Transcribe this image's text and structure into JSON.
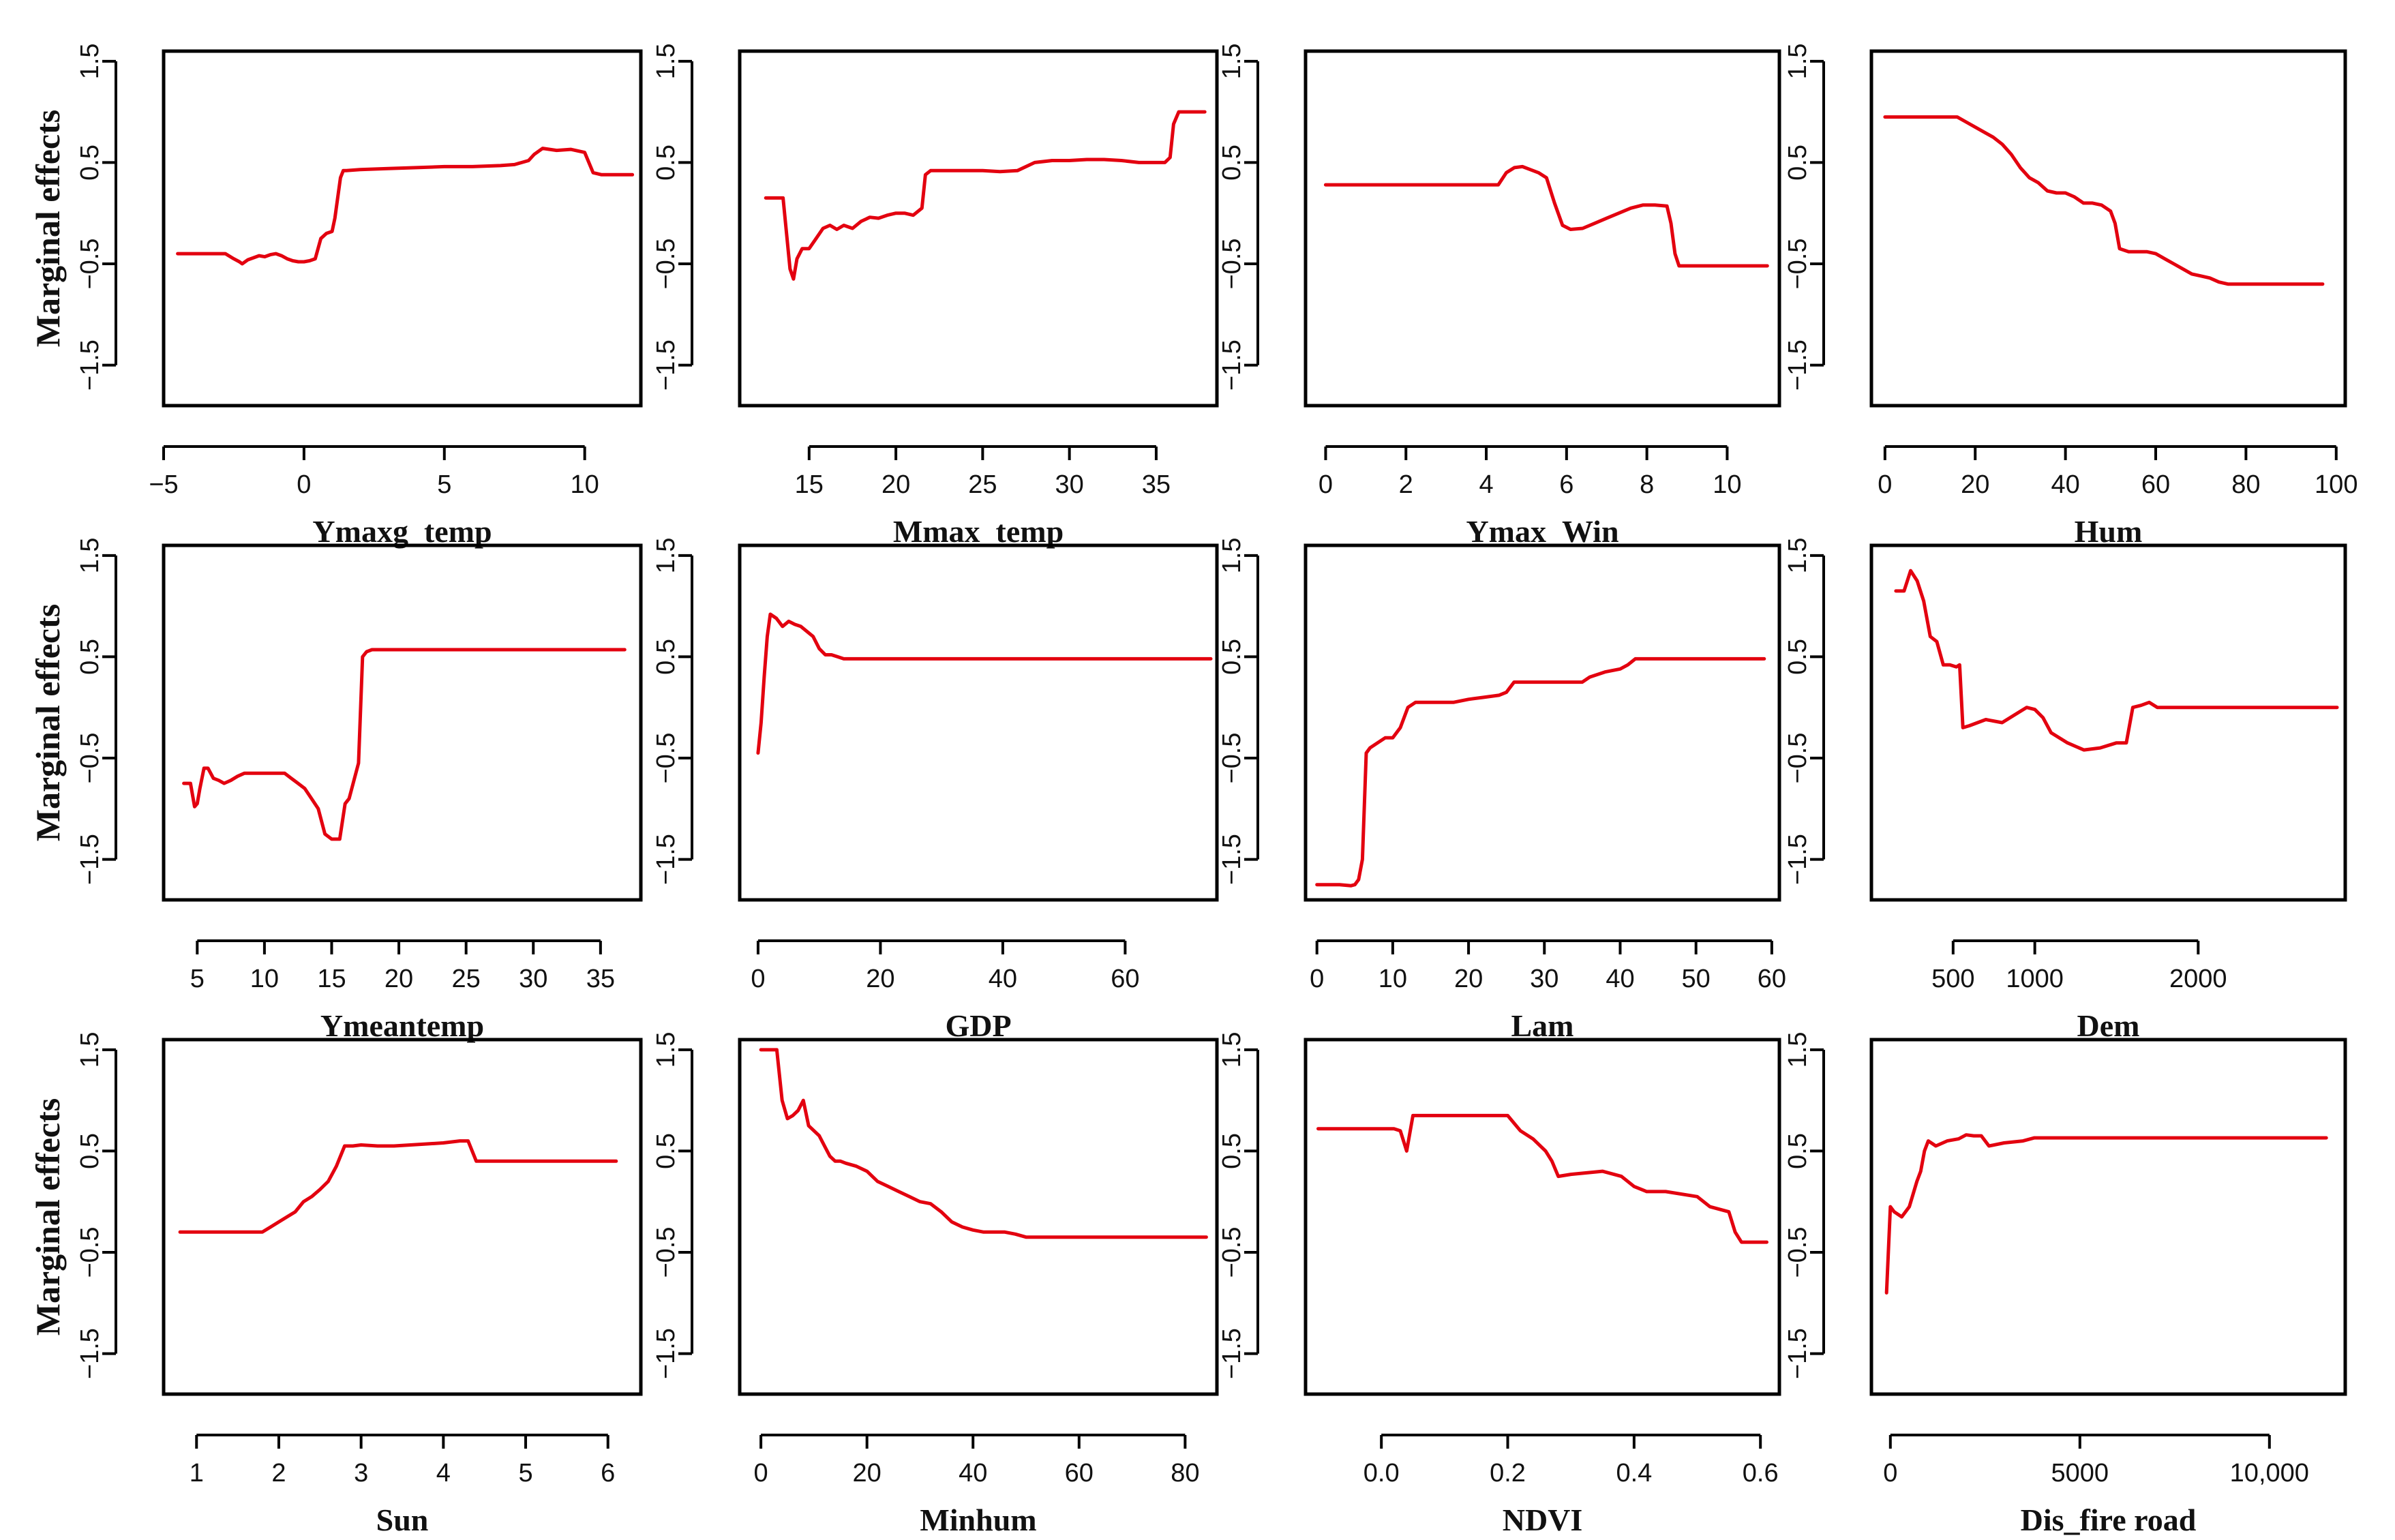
{
  "figure_ylabel": "Marginal effects",
  "colors": {
    "line": "#e3000f",
    "axis": "#000000",
    "background": "#ffffff"
  },
  "chart_data": [
    {
      "type": "line",
      "xlabel": "Ymaxg_temp",
      "ylabel": "Marginal effects",
      "xlim": [
        -5,
        12
      ],
      "ylim": [
        -1.9,
        1.6
      ],
      "xticks": [
        -5,
        0,
        5,
        10
      ],
      "xtick_labels": [
        "−5",
        "0",
        "5",
        "10"
      ],
      "yticks": [
        -1.5,
        -0.5,
        0.5,
        1.5
      ],
      "ytick_labels": [
        "−1.5",
        "−0.5",
        "0.5",
        "1.5"
      ],
      "x": [
        -4.5,
        -2.8,
        -2.5,
        -2.3,
        -2.2,
        -2.0,
        -1.8,
        -1.6,
        -1.4,
        -1.2,
        -1.0,
        -0.8,
        -0.6,
        -0.4,
        -0.2,
        0.0,
        0.2,
        0.4,
        0.6,
        0.8,
        1.0,
        1.1,
        1.2,
        1.3,
        1.4,
        1.5,
        2.0,
        3.0,
        4.0,
        5.0,
        6.0,
        7.0,
        7.5,
        8.0,
        8.2,
        8.5,
        9.0,
        9.5,
        10.0,
        10.3,
        10.6,
        11.7
      ],
      "y": [
        -0.4,
        -0.4,
        -0.45,
        -0.48,
        -0.5,
        -0.46,
        -0.44,
        -0.42,
        -0.43,
        -0.41,
        -0.4,
        -0.42,
        -0.45,
        -0.47,
        -0.48,
        -0.48,
        -0.47,
        -0.45,
        -0.25,
        -0.2,
        -0.18,
        -0.05,
        0.15,
        0.35,
        0.42,
        0.42,
        0.43,
        0.44,
        0.45,
        0.46,
        0.46,
        0.47,
        0.48,
        0.52,
        0.58,
        0.64,
        0.62,
        0.63,
        0.6,
        0.4,
        0.38,
        0.38
      ]
    },
    {
      "type": "line",
      "xlabel": "Mmax_temp",
      "ylabel": "Marginal effects",
      "xlim": [
        11,
        38.5
      ],
      "ylim": [
        -1.9,
        1.6
      ],
      "xticks": [
        15,
        20,
        25,
        30,
        35
      ],
      "xtick_labels": [
        "15",
        "20",
        "25",
        "30",
        "35"
      ],
      "yticks": [
        -1.5,
        -0.5,
        0.5,
        1.5
      ],
      "ytick_labels": [
        "−1.5",
        "−0.5",
        "0.5",
        "1.5"
      ],
      "x": [
        12.5,
        13.5,
        13.7,
        13.9,
        14.1,
        14.3,
        14.6,
        15.0,
        15.4,
        15.8,
        16.2,
        16.6,
        17.0,
        17.5,
        18.0,
        18.5,
        19.0,
        19.5,
        20.0,
        20.5,
        21.0,
        21.5,
        21.7,
        22.0,
        23.0,
        24.0,
        25.0,
        26.0,
        27.0,
        28.0,
        29.0,
        30.0,
        31.0,
        32.0,
        33.0,
        34.0,
        35.0,
        35.5,
        35.8,
        36.0,
        36.3,
        37.8
      ],
      "y": [
        0.15,
        0.15,
        -0.2,
        -0.55,
        -0.65,
        -0.45,
        -0.35,
        -0.35,
        -0.25,
        -0.15,
        -0.12,
        -0.16,
        -0.12,
        -0.15,
        -0.08,
        -0.04,
        -0.05,
        -0.02,
        0.0,
        0.0,
        -0.02,
        0.05,
        0.38,
        0.42,
        0.42,
        0.42,
        0.42,
        0.41,
        0.42,
        0.5,
        0.52,
        0.52,
        0.53,
        0.53,
        0.52,
        0.5,
        0.5,
        0.5,
        0.55,
        0.88,
        1.0,
        1.0
      ]
    },
    {
      "type": "line",
      "xlabel": "Ymax_Win",
      "ylabel": "Marginal effects",
      "xlim": [
        -0.5,
        11.3
      ],
      "ylim": [
        -1.9,
        1.6
      ],
      "xticks": [
        0,
        2,
        4,
        6,
        8,
        10
      ],
      "xtick_labels": [
        "0",
        "2",
        "4",
        "6",
        "8",
        "10"
      ],
      "yticks": [
        -1.5,
        -0.5,
        0.5,
        1.5
      ],
      "ytick_labels": [
        "−1.5",
        "−0.5",
        "0.5",
        "1.5"
      ],
      "x": [
        0.0,
        1.0,
        2.0,
        3.0,
        4.0,
        4.3,
        4.5,
        4.7,
        4.9,
        5.1,
        5.3,
        5.5,
        5.7,
        5.9,
        6.1,
        6.4,
        6.7,
        7.0,
        7.3,
        7.6,
        7.9,
        8.2,
        8.5,
        8.6,
        8.7,
        8.8,
        9.0,
        10.0,
        11.0
      ],
      "y": [
        0.28,
        0.28,
        0.28,
        0.28,
        0.28,
        0.28,
        0.4,
        0.45,
        0.46,
        0.43,
        0.4,
        0.35,
        0.1,
        -0.12,
        -0.16,
        -0.15,
        -0.1,
        -0.05,
        0.0,
        0.05,
        0.08,
        0.08,
        0.07,
        -0.1,
        -0.4,
        -0.52,
        -0.52,
        -0.52,
        -0.52
      ]
    },
    {
      "type": "line",
      "xlabel": "Hum",
      "ylabel": "Marginal effects",
      "xlim": [
        -3,
        102
      ],
      "ylim": [
        -1.9,
        1.6
      ],
      "xticks": [
        0,
        20,
        40,
        60,
        80,
        100
      ],
      "xtick_labels": [
        "0",
        "20",
        "40",
        "60",
        "80",
        "100"
      ],
      "yticks": [
        -1.5,
        -0.5,
        0.5,
        1.5
      ],
      "ytick_labels": [
        "−1.5",
        "−0.5",
        "0.5",
        "1.5"
      ],
      "x": [
        0,
        10,
        16,
        18,
        20,
        22,
        24,
        26,
        28,
        30,
        32,
        34,
        36,
        38,
        40,
        42,
        44,
        46,
        48,
        50,
        51,
        52,
        54,
        56,
        58,
        60,
        62,
        64,
        66,
        68,
        70,
        72,
        74,
        76,
        80,
        90,
        97
      ],
      "y": [
        0.95,
        0.95,
        0.95,
        0.9,
        0.85,
        0.8,
        0.75,
        0.68,
        0.58,
        0.45,
        0.35,
        0.3,
        0.22,
        0.2,
        0.2,
        0.16,
        0.1,
        0.1,
        0.08,
        0.02,
        -0.1,
        -0.35,
        -0.38,
        -0.38,
        -0.38,
        -0.4,
        -0.45,
        -0.5,
        -0.55,
        -0.6,
        -0.62,
        -0.64,
        -0.68,
        -0.7,
        -0.7,
        -0.7,
        -0.7
      ]
    },
    {
      "type": "line",
      "xlabel": "Ymeantemp",
      "ylabel": "Marginal effects",
      "xlim": [
        2.5,
        38
      ],
      "ylim": [
        -1.9,
        1.6
      ],
      "xticks": [
        5,
        10,
        15,
        20,
        25,
        30,
        35
      ],
      "xtick_labels": [
        "5",
        "10",
        "15",
        "20",
        "25",
        "30",
        "35"
      ],
      "yticks": [
        -1.5,
        -0.5,
        0.5,
        1.5
      ],
      "ytick_labels": [
        "−1.5",
        "−0.5",
        "0.5",
        "1.5"
      ],
      "x": [
        4.0,
        4.5,
        4.8,
        5.0,
        5.2,
        5.5,
        5.8,
        6.2,
        6.6,
        7.0,
        7.5,
        8.0,
        8.5,
        9.0,
        10.0,
        11.0,
        11.5,
        12.0,
        12.5,
        13.0,
        13.5,
        14.0,
        14.5,
        15.0,
        15.3,
        15.6,
        16.0,
        16.3,
        16.6,
        17.0,
        17.3,
        17.6,
        18.0,
        20.0,
        25.0,
        30.0,
        36.8
      ],
      "y": [
        -0.75,
        -0.75,
        -0.98,
        -0.95,
        -0.8,
        -0.6,
        -0.6,
        -0.7,
        -0.72,
        -0.75,
        -0.72,
        -0.68,
        -0.65,
        -0.65,
        -0.65,
        -0.65,
        -0.65,
        -0.7,
        -0.75,
        -0.8,
        -0.9,
        -1.0,
        -1.25,
        -1.3,
        -1.3,
        -1.3,
        -0.95,
        -0.9,
        -0.75,
        -0.55,
        0.5,
        0.55,
        0.57,
        0.57,
        0.57,
        0.57,
        0.57
      ]
    },
    {
      "type": "line",
      "xlabel": "GDP",
      "ylabel": "Marginal effects",
      "xlim": [
        -3,
        75
      ],
      "ylim": [
        -1.9,
        1.6
      ],
      "xticks": [
        0,
        20,
        40,
        60
      ],
      "xtick_labels": [
        "0",
        "20",
        "40",
        "60"
      ],
      "yticks": [
        -1.5,
        -0.5,
        0.5,
        1.5
      ],
      "ytick_labels": [
        "−1.5",
        "−0.5",
        "0.5",
        "1.5"
      ],
      "x": [
        0.0,
        0.5,
        1.0,
        1.5,
        2.0,
        3.0,
        4.0,
        5.0,
        6.0,
        7.0,
        8.0,
        9.0,
        10.0,
        11.0,
        12.0,
        13.0,
        14.0,
        15.0,
        20.0,
        40.0,
        60.0,
        74.0
      ],
      "y": [
        -0.45,
        -0.15,
        0.3,
        0.7,
        0.92,
        0.88,
        0.8,
        0.85,
        0.82,
        0.8,
        0.75,
        0.7,
        0.58,
        0.52,
        0.52,
        0.5,
        0.48,
        0.48,
        0.48,
        0.48,
        0.48,
        0.48
      ]
    },
    {
      "type": "line",
      "xlabel": "Lam",
      "ylabel": "Marginal effects",
      "xlim": [
        -1.5,
        61
      ],
      "ylim": [
        -1.9,
        1.6
      ],
      "xticks": [
        0,
        10,
        20,
        30,
        40,
        50,
        60
      ],
      "xtick_labels": [
        "0",
        "10",
        "20",
        "30",
        "40",
        "50",
        "60"
      ],
      "yticks": [
        -1.5,
        -0.5,
        0.5,
        1.5
      ],
      "ytick_labels": [
        "−1.5",
        "−0.5",
        "0.5",
        "1.5"
      ],
      "x": [
        0.0,
        3.0,
        4.5,
        5.0,
        5.5,
        6.0,
        6.5,
        7.0,
        8.0,
        9.0,
        10.0,
        11.0,
        12.0,
        13.0,
        15.0,
        18.0,
        20.0,
        22.0,
        24.0,
        25.0,
        26.0,
        28.0,
        30.0,
        32.0,
        35.0,
        36.0,
        38.0,
        40.0,
        41.0,
        42.0,
        45.0,
        50.0,
        59.0
      ],
      "y": [
        -1.75,
        -1.75,
        -1.76,
        -1.75,
        -1.7,
        -1.5,
        -0.45,
        -0.4,
        -0.35,
        -0.3,
        -0.3,
        -0.2,
        0.0,
        0.05,
        0.05,
        0.05,
        0.08,
        0.1,
        0.12,
        0.15,
        0.25,
        0.25,
        0.25,
        0.25,
        0.25,
        0.3,
        0.35,
        0.38,
        0.42,
        0.48,
        0.48,
        0.48,
        0.48
      ]
    },
    {
      "type": "line",
      "xlabel": "Dem",
      "ylabel": "Marginal effects",
      "xlim": [
        0,
        2900
      ],
      "ylim": [
        -1.9,
        1.6
      ],
      "xticks": [
        500,
        1000,
        2000
      ],
      "xtick_labels": [
        "500",
        "1000",
        "2000"
      ],
      "yticks": [
        -1.5,
        -0.5,
        0.5,
        1.5
      ],
      "ytick_labels": [
        "−1.5",
        "−0.5",
        "0.5",
        "1.5"
      ],
      "x": [
        150,
        200,
        240,
        280,
        320,
        360,
        400,
        440,
        480,
        520,
        540,
        560,
        600,
        700,
        800,
        900,
        950,
        1000,
        1050,
        1100,
        1200,
        1300,
        1400,
        1500,
        1560,
        1600,
        1650,
        1700,
        1750,
        1800,
        2000,
        2500,
        2850
      ],
      "y": [
        1.15,
        1.15,
        1.35,
        1.25,
        1.05,
        0.7,
        0.65,
        0.42,
        0.42,
        0.4,
        0.42,
        -0.2,
        -0.18,
        -0.12,
        -0.15,
        -0.05,
        0.0,
        -0.02,
        -0.1,
        -0.25,
        -0.35,
        -0.42,
        -0.4,
        -0.35,
        -0.35,
        0.0,
        0.02,
        0.05,
        0.0,
        0.0,
        0.0,
        0.0,
        0.0
      ]
    },
    {
      "type": "line",
      "xlabel": "Sun",
      "ylabel": "Marginal effects",
      "xlim": [
        0.6,
        6.4
      ],
      "ylim": [
        -1.9,
        1.6
      ],
      "xticks": [
        1,
        2,
        3,
        4,
        5,
        6
      ],
      "xtick_labels": [
        "1",
        "2",
        "3",
        "4",
        "5",
        "6"
      ],
      "yticks": [
        -1.5,
        -0.5,
        0.5,
        1.5
      ],
      "ytick_labels": [
        "−1.5",
        "−0.5",
        "0.5",
        "1.5"
      ],
      "x": [
        0.8,
        1.2,
        1.6,
        1.8,
        1.9,
        2.0,
        2.1,
        2.2,
        2.3,
        2.4,
        2.5,
        2.6,
        2.7,
        2.8,
        2.9,
        3.0,
        3.2,
        3.4,
        3.6,
        3.8,
        4.0,
        4.2,
        4.3,
        4.4,
        4.5,
        5.0,
        6.1
      ],
      "y": [
        -0.3,
        -0.3,
        -0.3,
        -0.3,
        -0.25,
        -0.2,
        -0.15,
        -0.1,
        0.0,
        0.05,
        0.12,
        0.2,
        0.35,
        0.55,
        0.55,
        0.56,
        0.55,
        0.55,
        0.56,
        0.57,
        0.58,
        0.6,
        0.6,
        0.4,
        0.4,
        0.4,
        0.4
      ]
    },
    {
      "type": "line",
      "xlabel": "Minhum",
      "ylabel": "Marginal effects",
      "xlim": [
        -4,
        86
      ],
      "ylim": [
        -1.9,
        1.6
      ],
      "xticks": [
        0,
        20,
        40,
        60,
        80
      ],
      "xtick_labels": [
        "0",
        "20",
        "40",
        "60",
        "80"
      ],
      "yticks": [
        -1.5,
        -0.5,
        0.5,
        1.5
      ],
      "ytick_labels": [
        "−1.5",
        "−0.5",
        "0.5",
        "1.5"
      ],
      "x": [
        0,
        3,
        4,
        5,
        6,
        7,
        8,
        9,
        10,
        11,
        12,
        13,
        14,
        15,
        16,
        18,
        20,
        22,
        24,
        26,
        28,
        30,
        32,
        34,
        36,
        38,
        40,
        42,
        44,
        46,
        48,
        50,
        52,
        60,
        70,
        84
      ],
      "y": [
        1.5,
        1.5,
        1.0,
        0.82,
        0.85,
        0.9,
        1.0,
        0.75,
        0.7,
        0.65,
        0.55,
        0.45,
        0.4,
        0.4,
        0.38,
        0.35,
        0.3,
        0.2,
        0.15,
        0.1,
        0.05,
        0.0,
        -0.02,
        -0.1,
        -0.2,
        -0.25,
        -0.28,
        -0.3,
        -0.3,
        -0.3,
        -0.32,
        -0.35,
        -0.35,
        -0.35,
        -0.35,
        -0.35
      ]
    },
    {
      "type": "line",
      "xlabel": "NDVI",
      "ylabel": "Marginal effects",
      "xlim": [
        -0.12,
        0.63
      ],
      "ylim": [
        -1.9,
        1.6
      ],
      "xticks": [
        0.0,
        0.2,
        0.4,
        0.6
      ],
      "xtick_labels": [
        "0.0",
        "0.2",
        "0.4",
        "0.6"
      ],
      "yticks": [
        -1.5,
        -0.5,
        0.5,
        1.5
      ],
      "ytick_labels": [
        "−1.5",
        "−0.5",
        "0.5",
        "1.5"
      ],
      "x": [
        -0.1,
        0.0,
        0.02,
        0.03,
        0.04,
        0.05,
        0.06,
        0.1,
        0.15,
        0.18,
        0.2,
        0.22,
        0.24,
        0.26,
        0.27,
        0.28,
        0.3,
        0.35,
        0.38,
        0.4,
        0.42,
        0.45,
        0.5,
        0.52,
        0.55,
        0.56,
        0.57,
        0.6,
        0.61
      ],
      "y": [
        0.72,
        0.72,
        0.72,
        0.7,
        0.5,
        0.85,
        0.85,
        0.85,
        0.85,
        0.85,
        0.85,
        0.7,
        0.62,
        0.5,
        0.4,
        0.25,
        0.27,
        0.3,
        0.25,
        0.15,
        0.1,
        0.1,
        0.05,
        -0.05,
        -0.1,
        -0.3,
        -0.4,
        -0.4,
        -0.4
      ]
    },
    {
      "type": "line",
      "xlabel": "Dis_fire road",
      "ylabel": "Marginal effects",
      "xlim": [
        -500,
        12000
      ],
      "ylim": [
        -1.9,
        1.6
      ],
      "xticks": [
        0,
        5000,
        10000
      ],
      "xtick_labels": [
        "0",
        "5000",
        "10,000"
      ],
      "yticks": [
        -1.5,
        -0.5,
        0.5,
        1.5
      ],
      "ytick_labels": [
        "−1.5",
        "−0.5",
        "0.5",
        "1.5"
      ],
      "x": [
        -100,
        0,
        100,
        300,
        500,
        700,
        800,
        900,
        1000,
        1200,
        1500,
        1800,
        2000,
        2200,
        2400,
        2600,
        3000,
        3500,
        3800,
        5000,
        8000,
        11500
      ],
      "y": [
        -0.9,
        -0.05,
        -0.1,
        -0.15,
        -0.05,
        0.2,
        0.3,
        0.5,
        0.6,
        0.55,
        0.6,
        0.62,
        0.66,
        0.65,
        0.65,
        0.55,
        0.58,
        0.6,
        0.63,
        0.63,
        0.63,
        0.63
      ]
    }
  ]
}
